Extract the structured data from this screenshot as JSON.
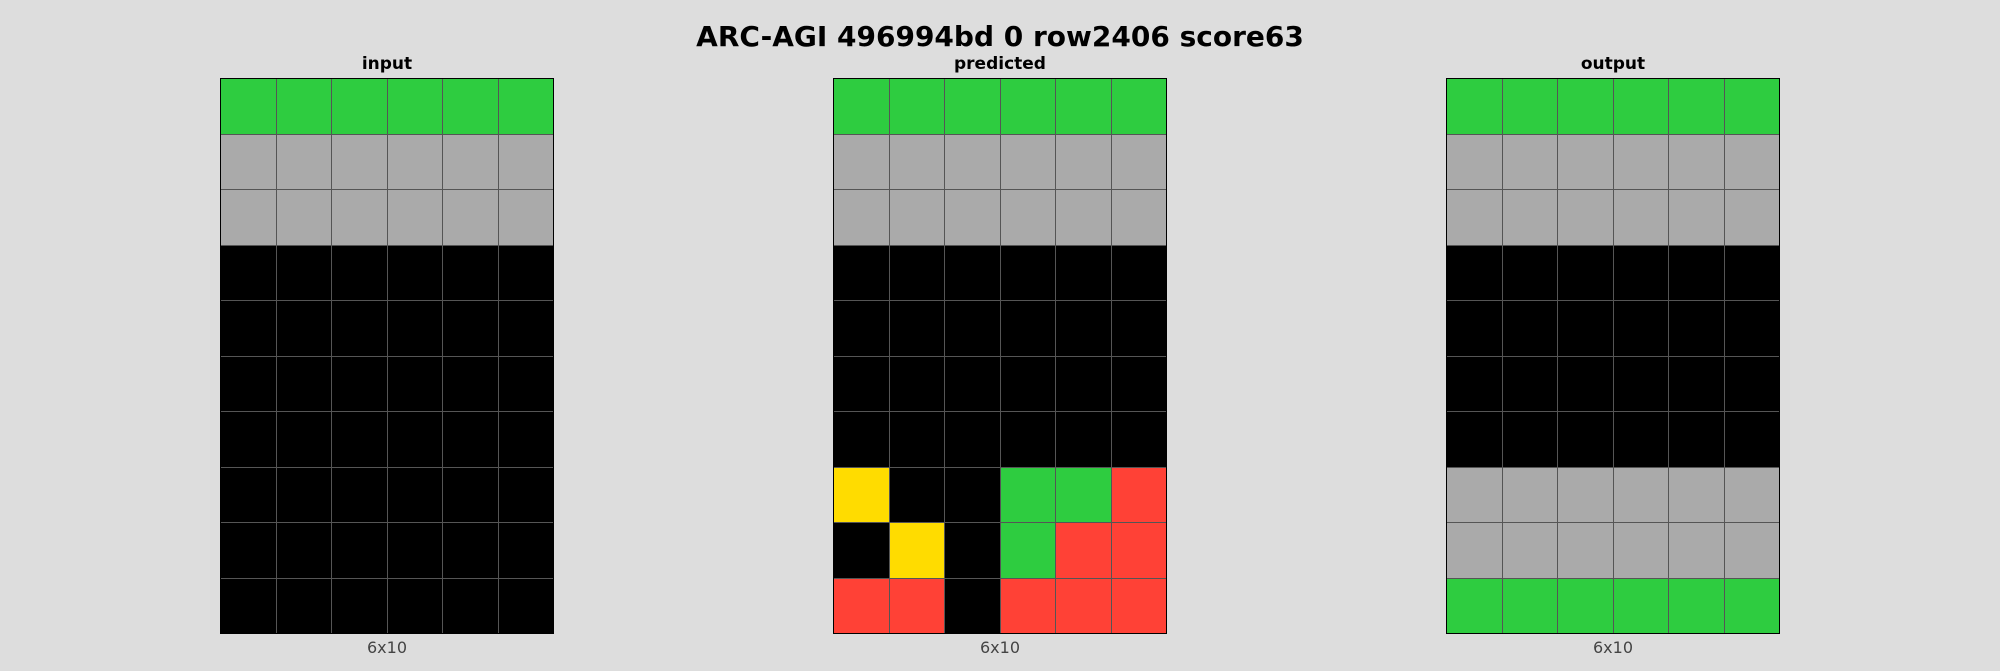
{
  "title": "ARC-AGI 496994bd 0 row2406 score63",
  "colors": {
    "0": "#000000",
    "2": "#ff4136",
    "3": "#2ecc40",
    "4": "#ffdc00",
    "5": "#aaaaaa"
  },
  "panels": [
    {
      "label": "input",
      "dims": "6x10",
      "grid": [
        [
          3,
          3,
          3,
          3,
          3,
          3
        ],
        [
          5,
          5,
          5,
          5,
          5,
          5
        ],
        [
          5,
          5,
          5,
          5,
          5,
          5
        ],
        [
          0,
          0,
          0,
          0,
          0,
          0
        ],
        [
          0,
          0,
          0,
          0,
          0,
          0
        ],
        [
          0,
          0,
          0,
          0,
          0,
          0
        ],
        [
          0,
          0,
          0,
          0,
          0,
          0
        ],
        [
          0,
          0,
          0,
          0,
          0,
          0
        ],
        [
          0,
          0,
          0,
          0,
          0,
          0
        ],
        [
          0,
          0,
          0,
          0,
          0,
          0
        ]
      ]
    },
    {
      "label": "predicted",
      "dims": "6x10",
      "grid": [
        [
          3,
          3,
          3,
          3,
          3,
          3
        ],
        [
          5,
          5,
          5,
          5,
          5,
          5
        ],
        [
          5,
          5,
          5,
          5,
          5,
          5
        ],
        [
          0,
          0,
          0,
          0,
          0,
          0
        ],
        [
          0,
          0,
          0,
          0,
          0,
          0
        ],
        [
          0,
          0,
          0,
          0,
          0,
          0
        ],
        [
          0,
          0,
          0,
          0,
          0,
          0
        ],
        [
          4,
          0,
          0,
          3,
          3,
          2
        ],
        [
          0,
          4,
          0,
          3,
          2,
          2
        ],
        [
          2,
          2,
          0,
          2,
          2,
          2
        ]
      ]
    },
    {
      "label": "output",
      "dims": "6x10",
      "grid": [
        [
          3,
          3,
          3,
          3,
          3,
          3
        ],
        [
          5,
          5,
          5,
          5,
          5,
          5
        ],
        [
          5,
          5,
          5,
          5,
          5,
          5
        ],
        [
          0,
          0,
          0,
          0,
          0,
          0
        ],
        [
          0,
          0,
          0,
          0,
          0,
          0
        ],
        [
          0,
          0,
          0,
          0,
          0,
          0
        ],
        [
          0,
          0,
          0,
          0,
          0,
          0
        ],
        [
          5,
          5,
          5,
          5,
          5,
          5
        ],
        [
          5,
          5,
          5,
          5,
          5,
          5
        ],
        [
          3,
          3,
          3,
          3,
          3,
          3
        ]
      ]
    }
  ]
}
